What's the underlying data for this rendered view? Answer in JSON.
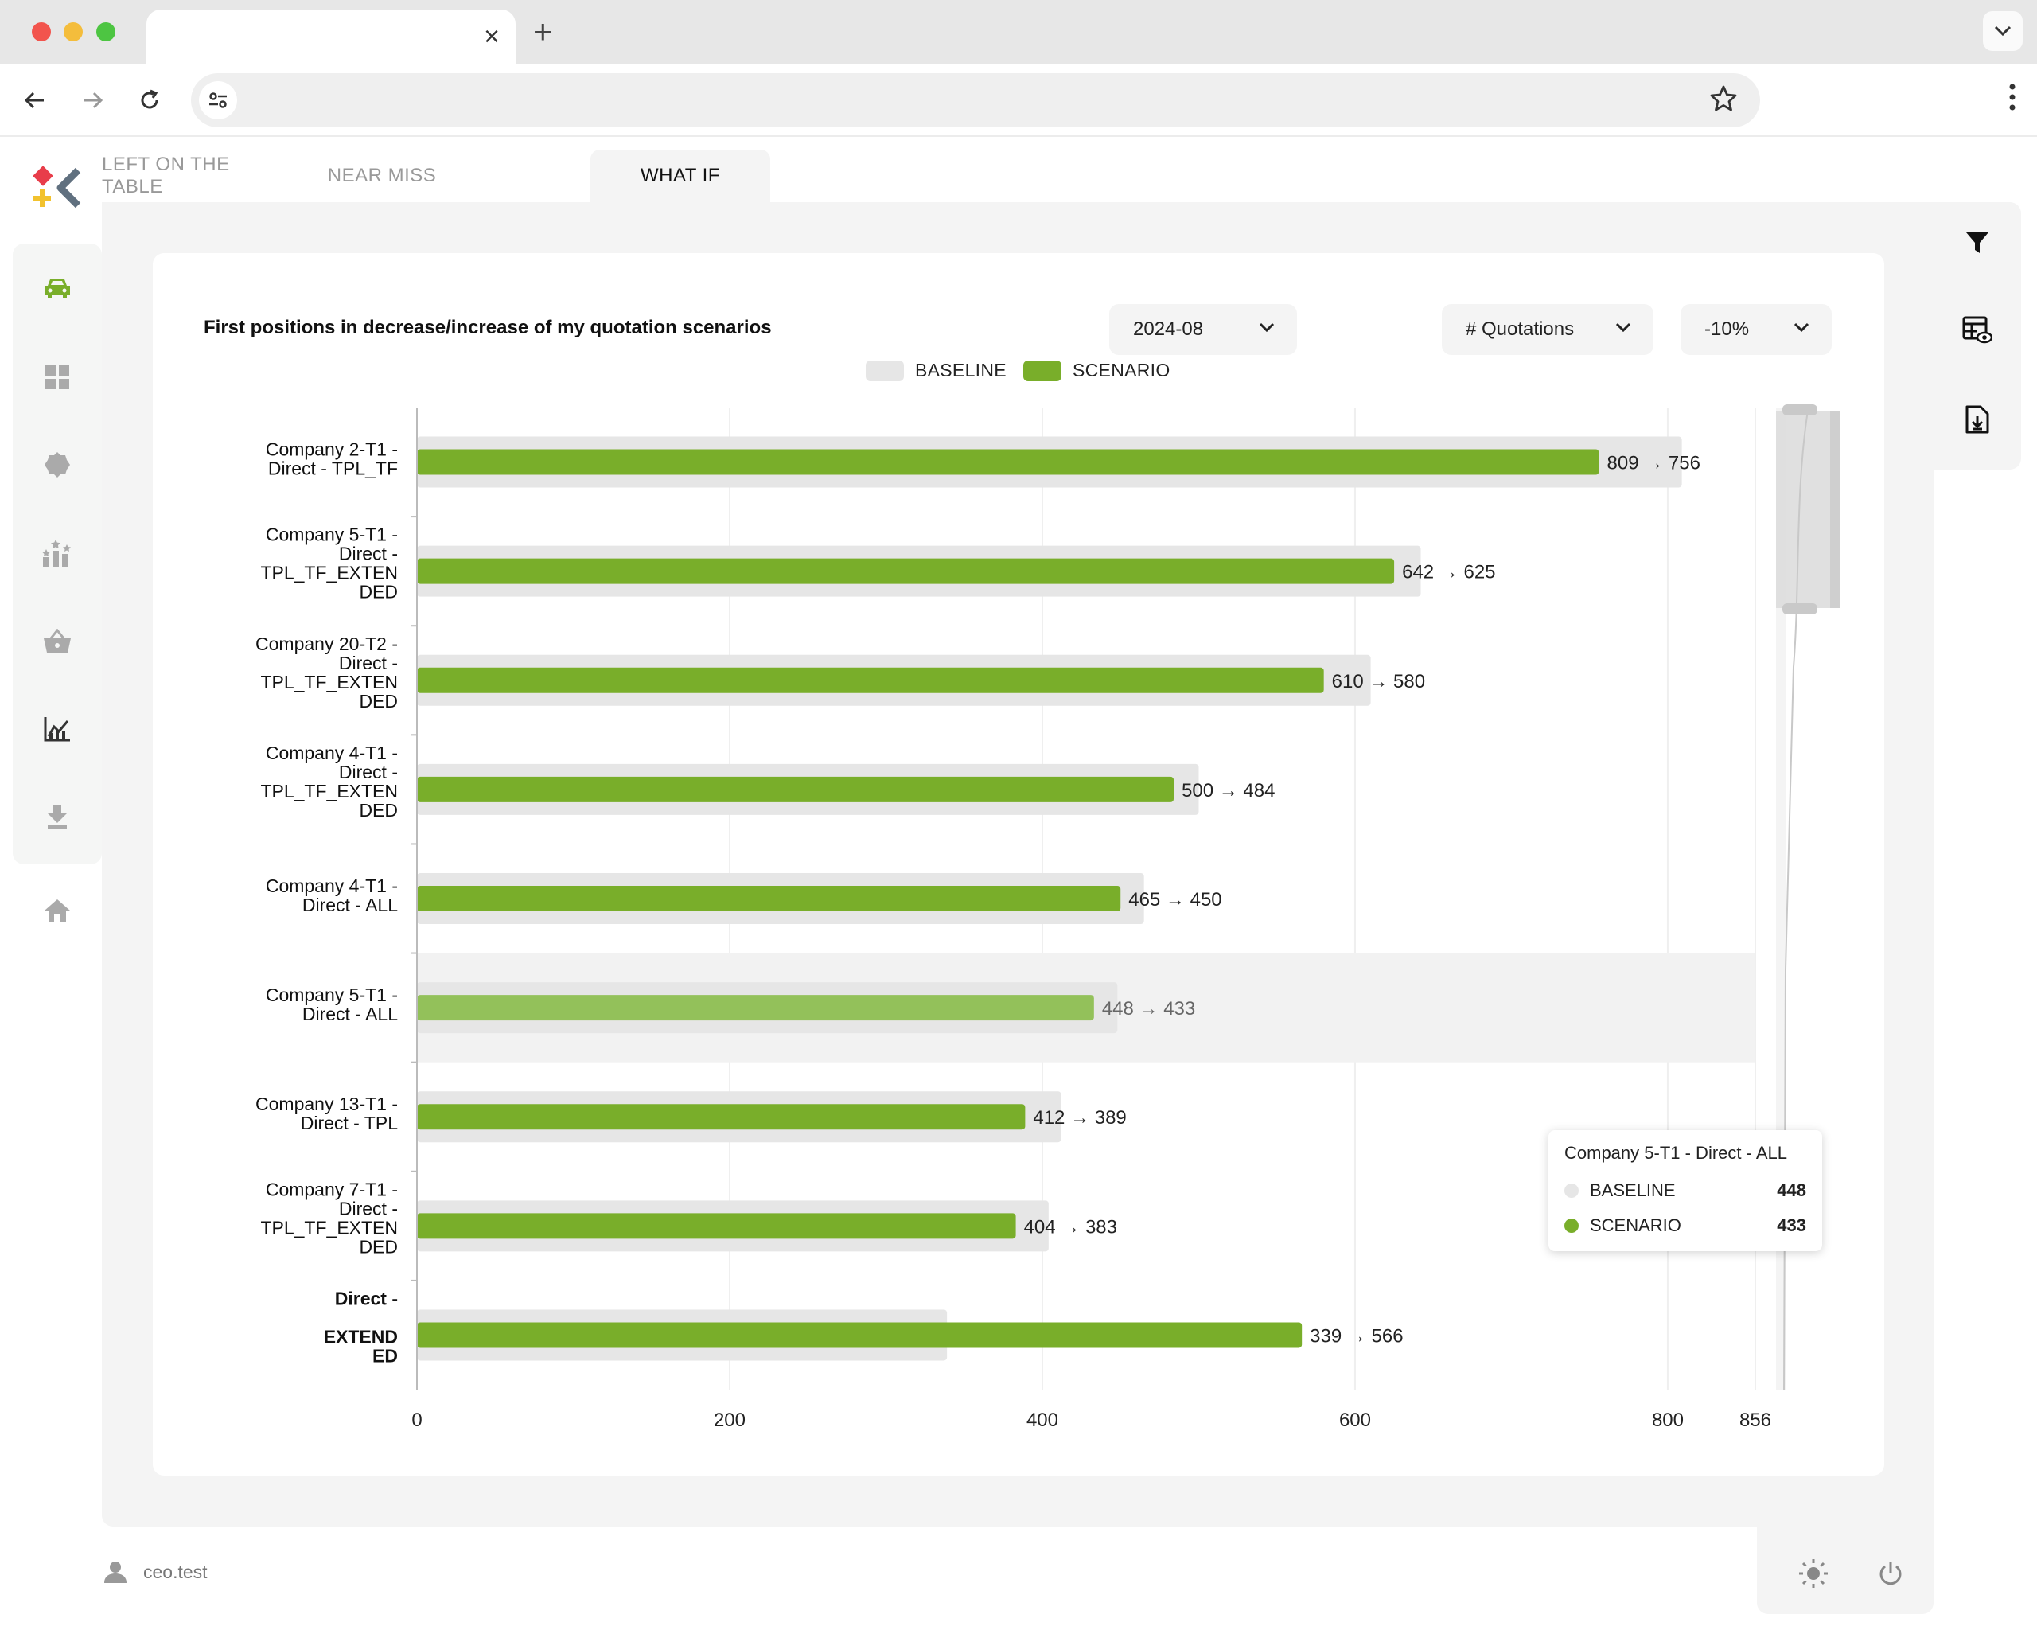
{
  "browser": {
    "tab_close": "×",
    "new_tab": "+"
  },
  "app": {
    "tabs": [
      {
        "label": "LEFT ON THE TABLE",
        "active": false
      },
      {
        "label": "NEAR MISS",
        "active": false
      },
      {
        "label": "WHAT IF",
        "active": true
      }
    ],
    "sidebar_icons": [
      "car-icon",
      "dashboard-grid-icon",
      "badge-gear-icon",
      "ranking-stars-icon",
      "basket-icon",
      "trend-chart-icon",
      "download-icon",
      "home-icon"
    ],
    "right_rail_icons": [
      "filter-icon",
      "table-view-icon",
      "file-export-icon"
    ],
    "user": "ceo.test",
    "accent_color": "#79ae2a"
  },
  "panel": {
    "title": "First positions in decrease/increase of my quotation scenarios",
    "filters": {
      "period": "2024-08",
      "metric": "# Quotations",
      "delta": "-10%"
    }
  },
  "chart_data": {
    "type": "bar",
    "orientation": "horizontal",
    "categories": [
      "Company 2-T1 - Direct - TPL_TF",
      "Company 5-T1 - Direct - TPL_TF_EXTENDED",
      "Company 20-T2 - Direct - TPL_TF_EXTENDED",
      "Company 4-T1 - Direct - TPL_TF_EXTENDED",
      "Company 4-T1 - Direct - ALL",
      "Company 5-T1 - Direct - ALL",
      "Company 13-T1 - Direct - TPL",
      "Company 7-T1 - Direct - TPL_TF_EXTENDED",
      "Direct - EXTENDED"
    ],
    "category_label_lines": [
      [
        "Company 2-T1 -",
        "Direct - TPL_TF"
      ],
      [
        "Company 5-T1 -",
        "Direct -",
        "TPL_TF_EXTEN",
        "DED"
      ],
      [
        "Company 20-T2 -",
        "Direct -",
        "TPL_TF_EXTEN",
        "DED"
      ],
      [
        "Company 4-T1 -",
        "Direct -",
        "TPL_TF_EXTEN",
        "DED"
      ],
      [
        "Company 4-T1 -",
        "Direct - ALL"
      ],
      [
        "Company 5-T1 -",
        "Direct - ALL"
      ],
      [
        "Company 13-T1 -",
        "Direct - TPL"
      ],
      [
        "Company 7-T1 -",
        "Direct -",
        "TPL_TF_EXTEN",
        "DED"
      ],
      [
        "Direct -",
        "",
        "EXTEND",
        "ED"
      ]
    ],
    "series": [
      {
        "name": "BASELINE",
        "color": "#e6e6e6",
        "values": [
          809,
          642,
          610,
          500,
          465,
          448,
          412,
          404,
          339
        ]
      },
      {
        "name": "SCENARIO",
        "color": "#79ae2a",
        "values": [
          756,
          625,
          580,
          484,
          450,
          433,
          389,
          383,
          566
        ]
      }
    ],
    "data_labels": [
      "809 → 756",
      "642 → 625",
      "610 → 580",
      "500 → 484",
      "465 → 450",
      "448 → 433",
      "412 → 389",
      "404 → 383",
      "339 → 566"
    ],
    "x_ticks": [
      0,
      200,
      400,
      600,
      800,
      856
    ],
    "xlim": [
      0,
      856
    ],
    "grid": true,
    "legend": "top-center",
    "highlighted_index": 5,
    "tooltip": {
      "title": "Company 5-T1 - Direct - ALL",
      "rows": [
        {
          "name": "BASELINE",
          "value": "448"
        },
        {
          "name": "SCENARIO",
          "value": "433"
        }
      ]
    }
  }
}
